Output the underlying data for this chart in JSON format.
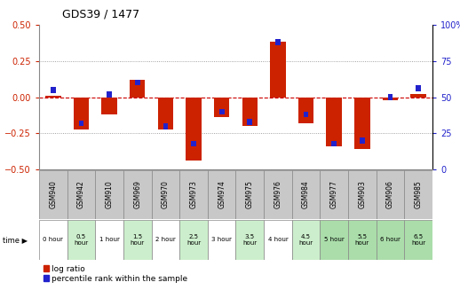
{
  "title": "GDS39 / 1477",
  "samples": [
    "GSM940",
    "GSM942",
    "GSM910",
    "GSM969",
    "GSM970",
    "GSM973",
    "GSM974",
    "GSM975",
    "GSM976",
    "GSM984",
    "GSM977",
    "GSM903",
    "GSM906",
    "GSM985"
  ],
  "time_labels": [
    "0 hour",
    "0.5\nhour",
    "1 hour",
    "1.5\nhour",
    "2 hour",
    "2.5\nhour",
    "3 hour",
    "3.5\nhour",
    "4 hour",
    "4.5\nhour",
    "5 hour",
    "5.5\nhour",
    "6 hour",
    "6.5\nhour"
  ],
  "log_ratio": [
    0.01,
    -0.22,
    -0.12,
    0.12,
    -0.22,
    -0.44,
    -0.14,
    -0.2,
    0.38,
    -0.18,
    -0.34,
    -0.36,
    -0.02,
    0.02
  ],
  "percentile": [
    55,
    32,
    52,
    60,
    30,
    18,
    40,
    33,
    88,
    38,
    18,
    20,
    50,
    56
  ],
  "bar_width": 0.55,
  "blue_bar_width": 0.18,
  "blue_bar_height": 0.04,
  "ylim": [
    -0.5,
    0.5
  ],
  "right_ylim": [
    0,
    100
  ],
  "yticks_left": [
    -0.5,
    -0.25,
    0,
    0.25,
    0.5
  ],
  "yticks_right": [
    0,
    25,
    50,
    75,
    100
  ],
  "red_color": "#cc2200",
  "blue_color": "#2222cc",
  "grid_color": "#888888",
  "zero_line_color": "#cc0000",
  "bg_color": "#ffffff",
  "plot_bg": "#ffffff",
  "sample_cell_color": "#c8c8c8",
  "time_colors": [
    "#ffffff",
    "#cceecc",
    "#ffffff",
    "#cceecc",
    "#ffffff",
    "#cceecc",
    "#ffffff",
    "#cceecc",
    "#ffffff",
    "#cceecc",
    "#aaddaa",
    "#aaddaa",
    "#aaddaa",
    "#aaddaa"
  ],
  "legend_red_label": "log ratio",
  "legend_blue_label": "percentile rank within the sample"
}
